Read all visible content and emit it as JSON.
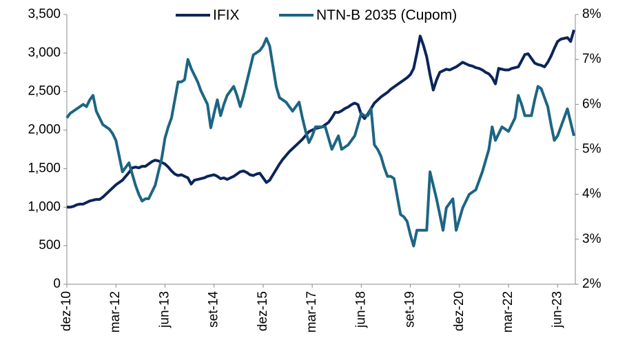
{
  "chart_data": {
    "type": "line",
    "categories": [
      "dez-10",
      null,
      null,
      null,
      null,
      null,
      null,
      null,
      null,
      null,
      null,
      null,
      null,
      null,
      null,
      "mar-12",
      null,
      null,
      null,
      null,
      null,
      null,
      null,
      null,
      null,
      null,
      null,
      null,
      null,
      null,
      "jun-13",
      null,
      null,
      null,
      null,
      null,
      null,
      null,
      null,
      null,
      null,
      null,
      null,
      null,
      null,
      "set-14",
      null,
      null,
      null,
      null,
      null,
      null,
      null,
      null,
      null,
      null,
      null,
      null,
      null,
      null,
      "dez-15",
      null,
      null,
      null,
      null,
      null,
      null,
      null,
      null,
      null,
      null,
      null,
      null,
      null,
      null,
      "mar-17",
      null,
      null,
      null,
      null,
      null,
      null,
      null,
      null,
      null,
      null,
      null,
      null,
      null,
      null,
      "jun-18",
      null,
      null,
      null,
      null,
      null,
      null,
      null,
      null,
      null,
      null,
      null,
      null,
      null,
      null,
      "set-19",
      null,
      null,
      null,
      null,
      null,
      null,
      null,
      null,
      null,
      null,
      null,
      null,
      null,
      null,
      "dez-20",
      null,
      null,
      null,
      null,
      null,
      null,
      null,
      null,
      null,
      null,
      null,
      null,
      null,
      null,
      "mar-22",
      null,
      null,
      null,
      null,
      null,
      null,
      null,
      null,
      null,
      null,
      null,
      null,
      null,
      null,
      "jun-23",
      null,
      null,
      null,
      null,
      null
    ],
    "series": [
      {
        "name": "IFIX",
        "color": "#0c2459",
        "axis": "y",
        "values": [
          1000,
          1000,
          1010,
          1030,
          1040,
          1040,
          1060,
          1080,
          1090,
          1100,
          1100,
          1130,
          1170,
          1210,
          1250,
          1290,
          1320,
          1350,
          1400,
          1450,
          1510,
          1520,
          1510,
          1530,
          1530,
          1560,
          1590,
          1610,
          1600,
          1580,
          1560,
          1520,
          1470,
          1430,
          1410,
          1420,
          1400,
          1380,
          1300,
          1350,
          1360,
          1370,
          1380,
          1400,
          1410,
          1420,
          1400,
          1370,
          1380,
          1360,
          1380,
          1400,
          1430,
          1460,
          1470,
          1450,
          1420,
          1410,
          1430,
          1440,
          1380,
          1320,
          1350,
          1420,
          1490,
          1560,
          1620,
          1670,
          1720,
          1760,
          1800,
          1840,
          1880,
          1930,
          1980,
          2000,
          2020,
          2030,
          2040,
          2070,
          2100,
          2160,
          2230,
          2230,
          2250,
          2280,
          2300,
          2330,
          2350,
          2330,
          2200,
          2150,
          2210,
          2280,
          2350,
          2390,
          2430,
          2460,
          2490,
          2530,
          2560,
          2590,
          2620,
          2650,
          2680,
          2720,
          2800,
          3000,
          3220,
          3100,
          2950,
          2720,
          2520,
          2650,
          2750,
          2770,
          2790,
          2780,
          2800,
          2820,
          2850,
          2880,
          2860,
          2840,
          2830,
          2810,
          2800,
          2780,
          2750,
          2730,
          2680,
          2600,
          2800,
          2790,
          2780,
          2780,
          2800,
          2810,
          2820,
          2900,
          2980,
          2990,
          2930,
          2870,
          2850,
          2840,
          2820,
          2880,
          2960,
          3060,
          3150,
          3180,
          3190,
          3200,
          3150,
          3300
        ]
      },
      {
        "name": "NTN-B 2035 (Cupom)",
        "color": "#1d6583",
        "axis": "y2",
        "values": [
          5.7,
          5.8,
          5.85,
          5.9,
          5.95,
          6.0,
          5.95,
          6.1,
          6.2,
          5.85,
          5.7,
          5.55,
          5.5,
          5.45,
          5.35,
          5.2,
          4.85,
          4.5,
          4.6,
          4.7,
          4.45,
          4.2,
          4.0,
          3.85,
          3.9,
          3.9,
          4.05,
          4.2,
          4.5,
          4.8,
          5.25,
          5.5,
          5.7,
          6.1,
          6.5,
          6.5,
          6.55,
          7.0,
          6.8,
          6.65,
          6.5,
          6.3,
          6.15,
          6.0,
          5.48,
          5.8,
          6.1,
          5.75,
          6.0,
          6.2,
          6.3,
          6.4,
          6.2,
          5.95,
          6.2,
          6.5,
          6.8,
          7.1,
          7.15,
          7.2,
          7.3,
          7.47,
          7.3,
          6.85,
          6.4,
          6.15,
          6.1,
          6.05,
          5.95,
          5.85,
          5.95,
          6.05,
          5.7,
          5.4,
          5.15,
          5.3,
          5.5,
          5.5,
          5.5,
          5.5,
          5.25,
          5.0,
          5.15,
          5.3,
          5.0,
          5.05,
          5.1,
          5.2,
          5.3,
          5.55,
          5.8,
          5.75,
          5.75,
          5.9,
          5.1,
          5.0,
          4.85,
          4.6,
          4.4,
          4.4,
          4.35,
          3.95,
          3.55,
          3.5,
          3.4,
          3.1,
          2.85,
          3.2,
          3.2,
          3.2,
          3.2,
          4.5,
          4.2,
          3.9,
          3.55,
          3.2,
          3.7,
          3.8,
          3.9,
          3.2,
          3.45,
          3.7,
          3.85,
          4.0,
          4.05,
          4.1,
          4.3,
          4.5,
          4.75,
          5.0,
          5.5,
          5.2,
          5.35,
          5.5,
          5.45,
          5.4,
          5.55,
          5.7,
          6.2,
          6.0,
          5.75,
          5.75,
          5.75,
          6.1,
          6.4,
          6.35,
          6.15,
          5.95,
          5.55,
          5.2,
          5.3,
          5.5,
          5.7,
          5.9,
          5.6,
          5.3
        ]
      }
    ],
    "ylim": [
      0,
      3500
    ],
    "yticks": [
      0,
      500,
      {
        "value": 1000,
        "label": "1,000"
      },
      {
        "value": 1500,
        "label": "1,500"
      },
      {
        "value": 2000,
        "label": "2,000"
      },
      {
        "value": 2500,
        "label": "2,500"
      },
      {
        "value": 3000,
        "label": "3,000"
      },
      {
        "value": 3500,
        "label": "3,500"
      }
    ],
    "y2lim": [
      2,
      8
    ],
    "y2ticks": [
      {
        "value": 2,
        "label": "2%"
      },
      {
        "value": 3,
        "label": "3%"
      },
      {
        "value": 4,
        "label": "4%"
      },
      {
        "value": 5,
        "label": "5%"
      },
      {
        "value": 6,
        "label": "6%"
      },
      {
        "value": 7,
        "label": "7%"
      },
      {
        "value": 8,
        "label": "8%"
      }
    ],
    "legend": "top",
    "grid": false
  }
}
